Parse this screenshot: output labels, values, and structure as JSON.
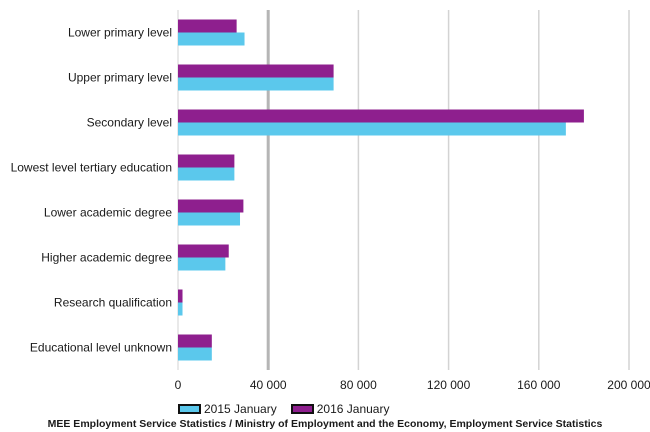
{
  "chart_data": {
    "type": "bar",
    "orientation": "horizontal",
    "categories": [
      "Lower primary level",
      "Upper primary level",
      "Secondary level",
      "Lowest level tertiary education",
      "Lower academic degree",
      "Higher academic degree",
      "Research qualification",
      "Educational level unknown"
    ],
    "series": [
      {
        "name": "2016 January",
        "color": "#8e1f8e",
        "values": [
          26000,
          69000,
          180000,
          25000,
          29000,
          22500,
          2000,
          15000
        ]
      },
      {
        "name": "2015 January",
        "color": "#5bc8ec",
        "values": [
          29500,
          69000,
          172000,
          25000,
          27500,
          21000,
          2000,
          15000
        ]
      }
    ],
    "x_ticks": [
      "0",
      "40 000",
      "80 000",
      "120 000",
      "160 000",
      "200 000"
    ],
    "xlim": [
      0,
      200000
    ],
    "grid": true,
    "legend_position": "bottom",
    "legend": [
      "2015 January",
      "2016 January"
    ]
  },
  "source": "MEE Employment Service Statistics / Ministry of Employment and the Economy, Employment Service Statistics"
}
